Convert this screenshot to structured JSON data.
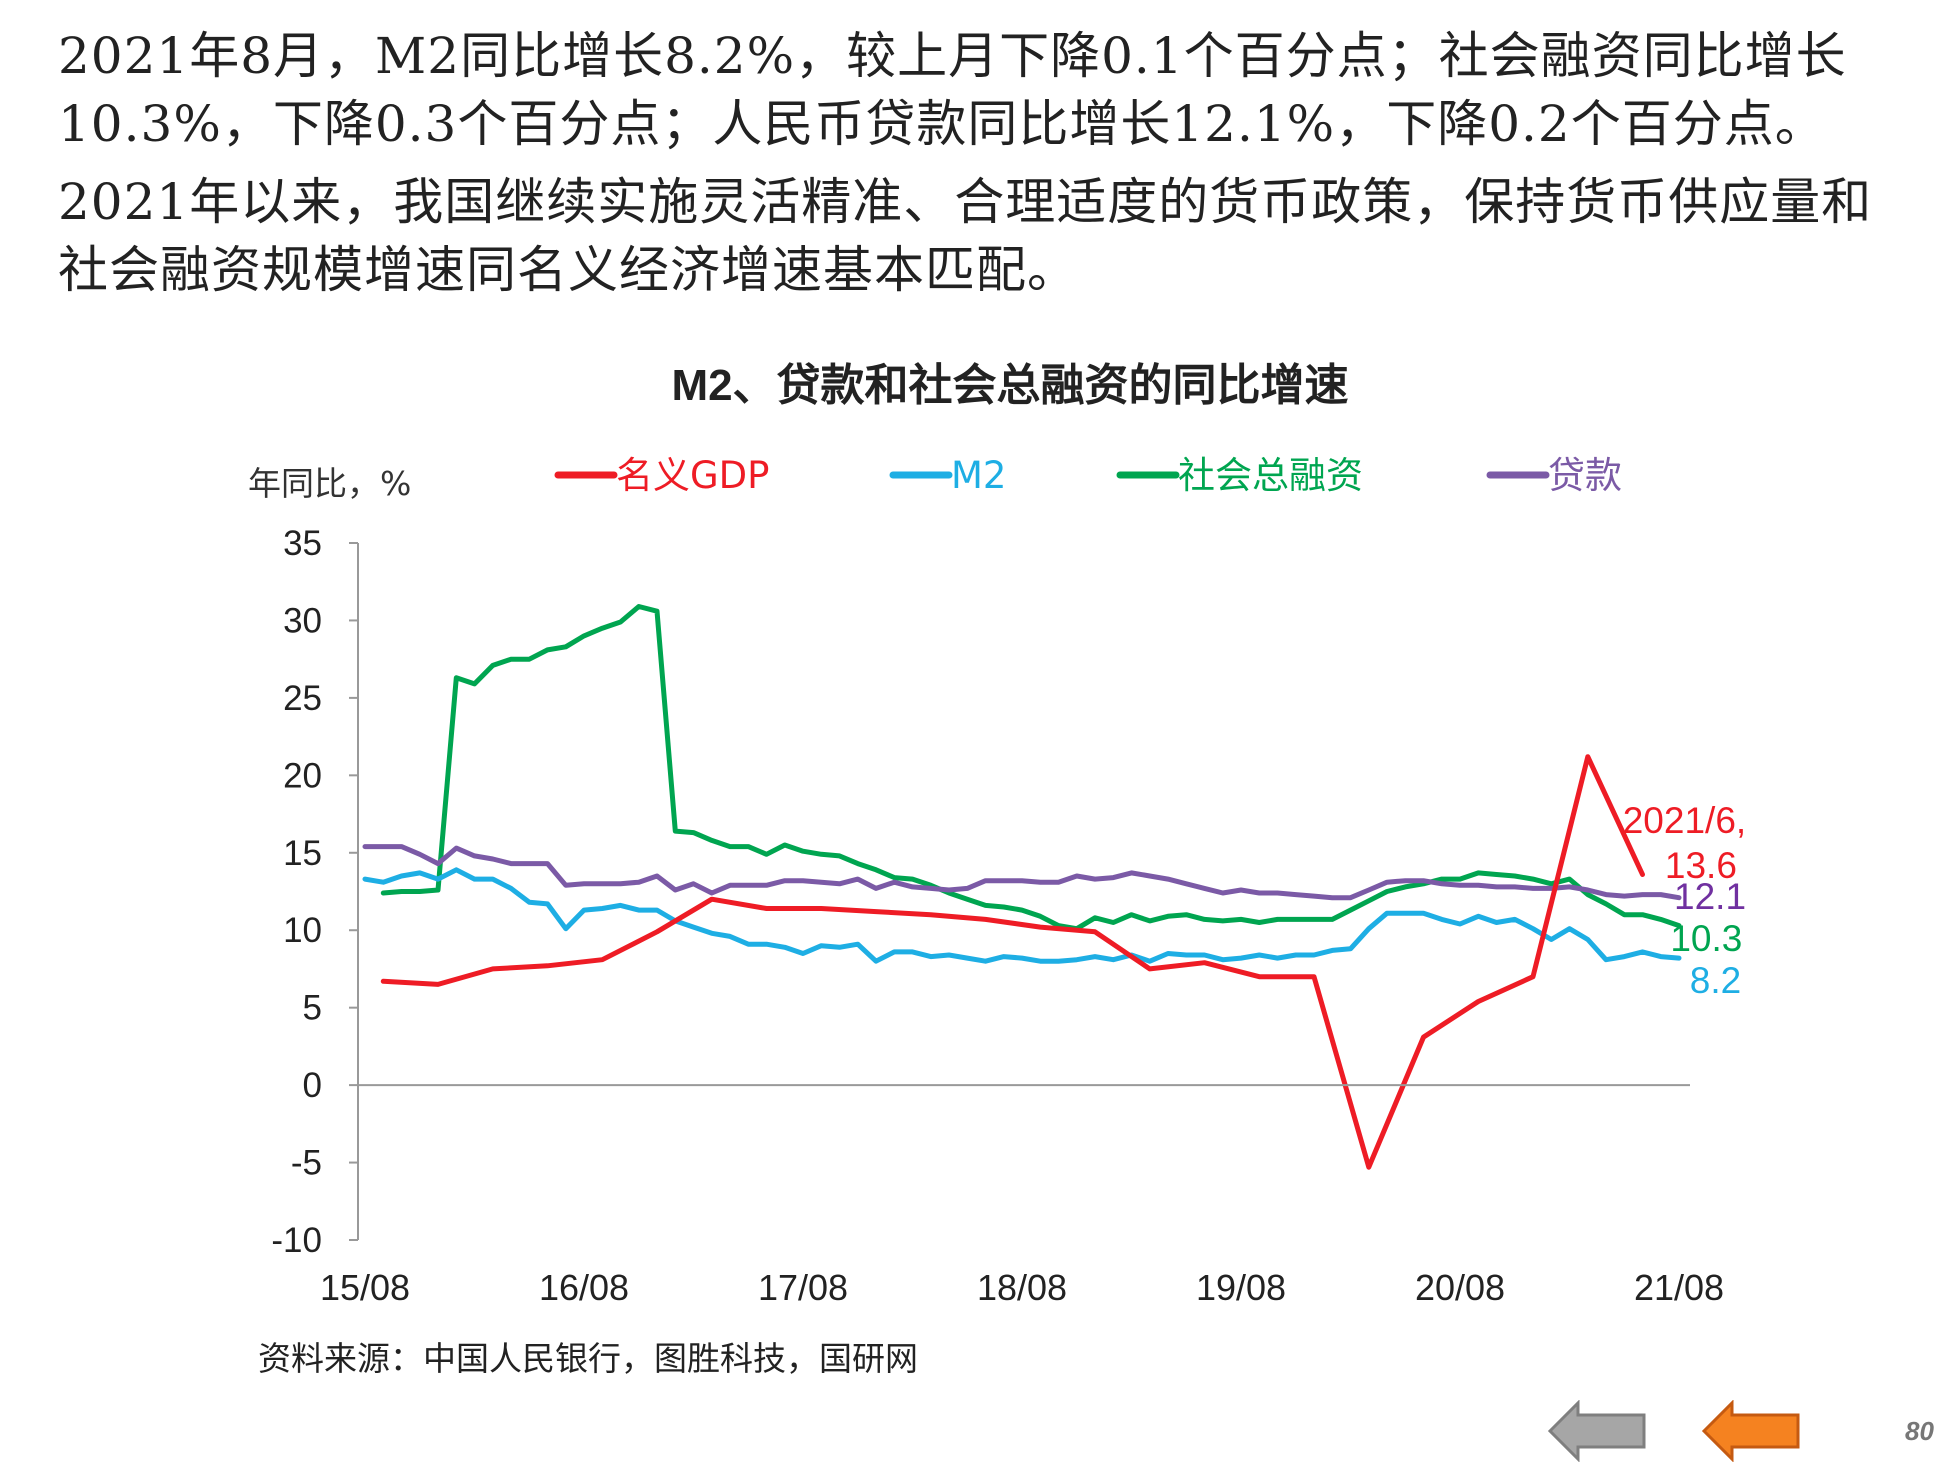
{
  "slide": {
    "paragraph1": "2021年8月，M2同比增长8.2%，较上月下降0.1个百分点；社会融资同比增长10.3%，下降0.3个百分点；人民币贷款同比增长12.1%，下降0.2个百分点。",
    "paragraph2": "2021年以来，我国继续实施灵活精准、合理适度的货币政策，保持货币供应量和社会融资规模增速同名义经济增速基本匹配。",
    "source": "资料来源：中国人民银行，图胜科技，国研网",
    "page_number": "80"
  },
  "nav": {
    "prev_icon": "left-arrow-icon",
    "next_icon": "left-arrow-icon",
    "prev_color": "#a6a6a6",
    "next_color": "#f58220"
  },
  "chart_data": {
    "type": "line",
    "title": "M2、贷款和社会总融资的同比增速",
    "ylabel": "年同比，%",
    "xlabel": "",
    "ylim": [
      -10,
      35
    ],
    "yticks": [
      35,
      30,
      25,
      20,
      15,
      10,
      5,
      0,
      -5,
      -10
    ],
    "x_tick_labels": [
      "15/08",
      "16/08",
      "17/08",
      "18/08",
      "19/08",
      "20/08",
      "21/08"
    ],
    "x_tick_months": [
      0,
      12,
      24,
      36,
      48,
      60,
      72
    ],
    "grid": false,
    "legend_position": "top",
    "series": [
      {
        "name": "名义GDP",
        "color": "#ee1c25",
        "points": [
          [
            1,
            6.7
          ],
          [
            4,
            6.5
          ],
          [
            7,
            7.5
          ],
          [
            10,
            7.7
          ],
          [
            13,
            8.1
          ],
          [
            16,
            9.9
          ],
          [
            19,
            12.0
          ],
          [
            22,
            11.4
          ],
          [
            25,
            11.4
          ],
          [
            28,
            11.2
          ],
          [
            31,
            11.0
          ],
          [
            34,
            10.7
          ],
          [
            37,
            10.2
          ],
          [
            40,
            9.9
          ],
          [
            43,
            7.5
          ],
          [
            46,
            7.9
          ],
          [
            49,
            7.0
          ],
          [
            52,
            7.0
          ],
          [
            55,
            -5.3
          ],
          [
            58,
            3.1
          ],
          [
            61,
            5.4
          ],
          [
            64,
            7.0
          ],
          [
            67,
            21.2
          ],
          [
            70,
            13.6
          ]
        ]
      },
      {
        "name": "M2",
        "color": "#1eaee4",
        "points": [
          [
            0,
            13.3
          ],
          [
            1,
            13.1
          ],
          [
            2,
            13.5
          ],
          [
            3,
            13.7
          ],
          [
            4,
            13.3
          ],
          [
            5,
            13.9
          ],
          [
            6,
            13.3
          ],
          [
            7,
            13.3
          ],
          [
            8,
            12.7
          ],
          [
            9,
            11.8
          ],
          [
            10,
            11.7
          ],
          [
            11,
            10.1
          ],
          [
            12,
            11.3
          ],
          [
            13,
            11.4
          ],
          [
            14,
            11.6
          ],
          [
            15,
            11.3
          ],
          [
            16,
            11.3
          ],
          [
            17,
            10.6
          ],
          [
            18,
            10.2
          ],
          [
            19,
            9.8
          ],
          [
            20,
            9.6
          ],
          [
            21,
            9.1
          ],
          [
            22,
            9.1
          ],
          [
            23,
            8.9
          ],
          [
            24,
            8.5
          ],
          [
            25,
            9.0
          ],
          [
            26,
            8.9
          ],
          [
            27,
            9.1
          ],
          [
            28,
            8.0
          ],
          [
            29,
            8.6
          ],
          [
            30,
            8.6
          ],
          [
            31,
            8.3
          ],
          [
            32,
            8.4
          ],
          [
            33,
            8.2
          ],
          [
            34,
            8.0
          ],
          [
            35,
            8.3
          ],
          [
            36,
            8.2
          ],
          [
            37,
            8.0
          ],
          [
            38,
            8.0
          ],
          [
            39,
            8.1
          ],
          [
            40,
            8.3
          ],
          [
            41,
            8.1
          ],
          [
            42,
            8.4
          ],
          [
            43,
            8.0
          ],
          [
            44,
            8.5
          ],
          [
            45,
            8.4
          ],
          [
            46,
            8.4
          ],
          [
            47,
            8.1
          ],
          [
            48,
            8.2
          ],
          [
            49,
            8.4
          ],
          [
            50,
            8.2
          ],
          [
            51,
            8.4
          ],
          [
            52,
            8.4
          ],
          [
            53,
            8.7
          ],
          [
            54,
            8.8
          ],
          [
            55,
            10.1
          ],
          [
            56,
            11.1
          ],
          [
            57,
            11.1
          ],
          [
            58,
            11.1
          ],
          [
            59,
            10.7
          ],
          [
            60,
            10.4
          ],
          [
            61,
            10.9
          ],
          [
            62,
            10.5
          ],
          [
            63,
            10.7
          ],
          [
            64,
            10.1
          ],
          [
            65,
            9.4
          ],
          [
            66,
            10.1
          ],
          [
            67,
            9.4
          ],
          [
            68,
            8.1
          ],
          [
            69,
            8.3
          ],
          [
            70,
            8.6
          ],
          [
            71,
            8.3
          ],
          [
            72,
            8.2
          ]
        ]
      },
      {
        "name": "社会总融资",
        "color": "#00a550",
        "points": [
          [
            1,
            12.4
          ],
          [
            2,
            12.5
          ],
          [
            3,
            12.5
          ],
          [
            4,
            12.6
          ],
          [
            5,
            26.3
          ],
          [
            6,
            25.9
          ],
          [
            7,
            27.1
          ],
          [
            8,
            27.5
          ],
          [
            9,
            27.5
          ],
          [
            10,
            28.1
          ],
          [
            11,
            28.3
          ],
          [
            12,
            29.0
          ],
          [
            13,
            29.5
          ],
          [
            14,
            29.9
          ],
          [
            15,
            30.9
          ],
          [
            16,
            30.6
          ],
          [
            17,
            16.4
          ],
          [
            18,
            16.3
          ],
          [
            19,
            15.8
          ],
          [
            20,
            15.4
          ],
          [
            21,
            15.4
          ],
          [
            22,
            14.9
          ],
          [
            23,
            15.5
          ],
          [
            24,
            15.1
          ],
          [
            25,
            14.9
          ],
          [
            26,
            14.8
          ],
          [
            27,
            14.3
          ],
          [
            28,
            13.9
          ],
          [
            29,
            13.4
          ],
          [
            30,
            13.3
          ],
          [
            31,
            12.9
          ],
          [
            32,
            12.4
          ],
          [
            33,
            12.0
          ],
          [
            34,
            11.6
          ],
          [
            35,
            11.5
          ],
          [
            36,
            11.3
          ],
          [
            37,
            10.9
          ],
          [
            38,
            10.3
          ],
          [
            39,
            10.1
          ],
          [
            40,
            10.8
          ],
          [
            41,
            10.5
          ],
          [
            42,
            11.0
          ],
          [
            43,
            10.6
          ],
          [
            44,
            10.9
          ],
          [
            45,
            11.0
          ],
          [
            46,
            10.7
          ],
          [
            47,
            10.6
          ],
          [
            48,
            10.7
          ],
          [
            49,
            10.5
          ],
          [
            50,
            10.7
          ],
          [
            51,
            10.7
          ],
          [
            52,
            10.7
          ],
          [
            53,
            10.7
          ],
          [
            54,
            11.3
          ],
          [
            55,
            11.9
          ],
          [
            56,
            12.5
          ],
          [
            57,
            12.8
          ],
          [
            58,
            13.0
          ],
          [
            59,
            13.3
          ],
          [
            60,
            13.3
          ],
          [
            61,
            13.7
          ],
          [
            62,
            13.6
          ],
          [
            63,
            13.5
          ],
          [
            64,
            13.3
          ],
          [
            65,
            13.0
          ],
          [
            66,
            13.3
          ],
          [
            67,
            12.3
          ],
          [
            68,
            11.7
          ],
          [
            69,
            11.0
          ],
          [
            70,
            11.0
          ],
          [
            71,
            10.7
          ],
          [
            72,
            10.3
          ]
        ]
      },
      {
        "name": "贷款",
        "color": "#7b5aa6",
        "points": [
          [
            0,
            15.4
          ],
          [
            1,
            15.4
          ],
          [
            2,
            15.4
          ],
          [
            3,
            14.9
          ],
          [
            4,
            14.3
          ],
          [
            5,
            15.3
          ],
          [
            6,
            14.8
          ],
          [
            7,
            14.6
          ],
          [
            8,
            14.3
          ],
          [
            9,
            14.3
          ],
          [
            10,
            14.3
          ],
          [
            11,
            12.9
          ],
          [
            12,
            13.0
          ],
          [
            13,
            13.0
          ],
          [
            14,
            13.0
          ],
          [
            15,
            13.1
          ],
          [
            16,
            13.5
          ],
          [
            17,
            12.6
          ],
          [
            18,
            13.0
          ],
          [
            19,
            12.4
          ],
          [
            20,
            12.9
          ],
          [
            21,
            12.9
          ],
          [
            22,
            12.9
          ],
          [
            23,
            13.2
          ],
          [
            24,
            13.2
          ],
          [
            25,
            13.1
          ],
          [
            26,
            13.0
          ],
          [
            27,
            13.3
          ],
          [
            28,
            12.7
          ],
          [
            29,
            13.1
          ],
          [
            30,
            12.8
          ],
          [
            31,
            12.7
          ],
          [
            32,
            12.6
          ],
          [
            33,
            12.7
          ],
          [
            34,
            13.2
          ],
          [
            35,
            13.2
          ],
          [
            36,
            13.2
          ],
          [
            37,
            13.1
          ],
          [
            38,
            13.1
          ],
          [
            39,
            13.5
          ],
          [
            40,
            13.3
          ],
          [
            41,
            13.4
          ],
          [
            42,
            13.7
          ],
          [
            43,
            13.5
          ],
          [
            44,
            13.3
          ],
          [
            45,
            13.0
          ],
          [
            46,
            12.7
          ],
          [
            47,
            12.4
          ],
          [
            48,
            12.6
          ],
          [
            49,
            12.4
          ],
          [
            50,
            12.4
          ],
          [
            51,
            12.3
          ],
          [
            52,
            12.2
          ],
          [
            53,
            12.1
          ],
          [
            54,
            12.1
          ],
          [
            55,
            12.6
          ],
          [
            56,
            13.1
          ],
          [
            57,
            13.2
          ],
          [
            58,
            13.2
          ],
          [
            59,
            13.0
          ],
          [
            60,
            12.9
          ],
          [
            61,
            12.9
          ],
          [
            62,
            12.8
          ],
          [
            63,
            12.8
          ],
          [
            64,
            12.7
          ],
          [
            65,
            12.7
          ],
          [
            66,
            12.8
          ],
          [
            67,
            12.6
          ],
          [
            68,
            12.3
          ],
          [
            69,
            12.2
          ],
          [
            70,
            12.3
          ],
          [
            71,
            12.3
          ],
          [
            72,
            12.1
          ]
        ]
      }
    ],
    "annotations": [
      {
        "label": "2021/6,",
        "color": "#ee1c25"
      },
      {
        "label": "13.6",
        "color": "#ee1c25"
      },
      {
        "label": "12.1",
        "color": "#7030a0"
      },
      {
        "label": "10.3",
        "color": "#00a550"
      },
      {
        "label": "8.2",
        "color": "#1eaee4"
      }
    ]
  }
}
